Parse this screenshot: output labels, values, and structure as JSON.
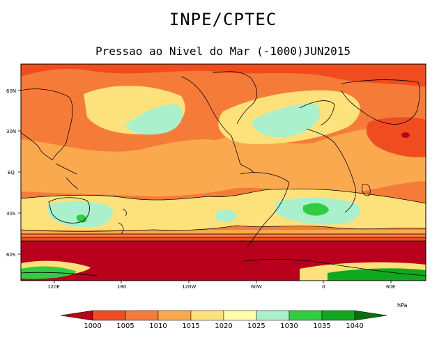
{
  "header": {
    "title": "INPE/CPTEC",
    "subtitle": "Pressao ao Nivel do Mar (-1000)JUN2015"
  },
  "axes": {
    "lat_labels": [
      "60N",
      "30N",
      "EQ",
      "30S",
      "60S"
    ],
    "lon_labels": [
      "120E",
      "180",
      "120W",
      "60W",
      "0",
      "60E"
    ]
  },
  "legend": {
    "unit": "hPa",
    "levels": [
      "1000",
      "1005",
      "1010",
      "1015",
      "1020",
      "1025",
      "1030",
      "1035",
      "1040"
    ],
    "colors": [
      "#b8001c",
      "#ef4d1f",
      "#f57c38",
      "#fba94f",
      "#fde27c",
      "#ffffaa",
      "#aaf0cc",
      "#30cd43",
      "#10a81e",
      "#0b8a14",
      "#0a6e0c"
    ]
  },
  "colors": {
    "ocean_line": "#000000",
    "contour": "#000000"
  }
}
